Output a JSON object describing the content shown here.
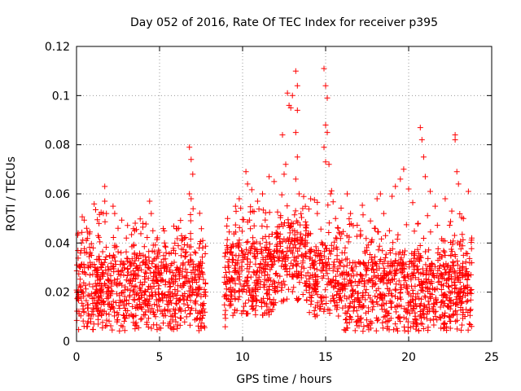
{
  "chart_data": {
    "type": "scatter",
    "title": "Day 052 of 2016, Rate Of TEC Index for receiver p395",
    "xlabel": "GPS time / hours",
    "ylabel": "ROTI / TECUs",
    "xlim": [
      0,
      25
    ],
    "ylim": [
      0,
      0.12
    ],
    "xticks": [
      0,
      5,
      10,
      15,
      20,
      25
    ],
    "yticks": [
      0,
      0.02,
      0.04,
      0.06,
      0.08,
      0.1,
      0.12
    ],
    "xtick_labels": [
      "0",
      "5",
      "10",
      "15",
      "20",
      "25"
    ],
    "ytick_labels": [
      "0",
      "0.02",
      "0.04",
      "0.06",
      "0.08",
      "0.1",
      "0.12"
    ],
    "grid": true,
    "marker": "+",
    "color": "#ff0000",
    "data_gap_hours": [
      7.8,
      8.9
    ],
    "series": [
      {
        "name": "ROTI",
        "points": [
          [
            0.1,
            0.044
          ],
          [
            0.3,
            0.04
          ],
          [
            0.5,
            0.036
          ],
          [
            1.0,
            0.038
          ],
          [
            1.3,
            0.043
          ],
          [
            1.7,
            0.063
          ],
          [
            1.7,
            0.057
          ],
          [
            1.8,
            0.052
          ],
          [
            2.2,
            0.055
          ],
          [
            2.3,
            0.052
          ],
          [
            3.0,
            0.042
          ],
          [
            3.5,
            0.045
          ],
          [
            4.0,
            0.048
          ],
          [
            4.4,
            0.057
          ],
          [
            4.5,
            0.052
          ],
          [
            4.6,
            0.045
          ],
          [
            5.3,
            0.04
          ],
          [
            5.7,
            0.036
          ],
          [
            6.5,
            0.042
          ],
          [
            6.8,
            0.079
          ],
          [
            6.9,
            0.074
          ],
          [
            7.0,
            0.068
          ],
          [
            6.8,
            0.06
          ],
          [
            6.9,
            0.058
          ],
          [
            7.6,
            0.041
          ],
          [
            9.1,
            0.05
          ],
          [
            9.8,
            0.058
          ],
          [
            10.2,
            0.069
          ],
          [
            10.3,
            0.064
          ],
          [
            10.9,
            0.057
          ],
          [
            11.2,
            0.06
          ],
          [
            11.6,
            0.067
          ],
          [
            11.9,
            0.065
          ],
          [
            12.4,
            0.084
          ],
          [
            12.7,
            0.101
          ],
          [
            12.8,
            0.096
          ],
          [
            12.9,
            0.095
          ],
          [
            13.0,
            0.1
          ],
          [
            13.2,
            0.11
          ],
          [
            13.3,
            0.104
          ],
          [
            13.3,
            0.094
          ],
          [
            13.2,
            0.085
          ],
          [
            13.3,
            0.075
          ],
          [
            13.2,
            0.066
          ],
          [
            13.4,
            0.06
          ],
          [
            12.6,
            0.072
          ],
          [
            12.5,
            0.068
          ],
          [
            14.1,
            0.058
          ],
          [
            14.5,
            0.052
          ],
          [
            14.9,
            0.111
          ],
          [
            15.0,
            0.104
          ],
          [
            15.1,
            0.099
          ],
          [
            15.0,
            0.088
          ],
          [
            15.1,
            0.085
          ],
          [
            14.9,
            0.079
          ],
          [
            15.0,
            0.073
          ],
          [
            15.2,
            0.072
          ],
          [
            15.3,
            0.06
          ],
          [
            15.6,
            0.05
          ],
          [
            16.3,
            0.06
          ],
          [
            16.5,
            0.052
          ],
          [
            17.1,
            0.045
          ],
          [
            17.7,
            0.049
          ],
          [
            18.1,
            0.058
          ],
          [
            18.3,
            0.06
          ],
          [
            18.5,
            0.052
          ],
          [
            19.0,
            0.059
          ],
          [
            19.2,
            0.063
          ],
          [
            19.5,
            0.066
          ],
          [
            19.7,
            0.07
          ],
          [
            20.0,
            0.062
          ],
          [
            20.7,
            0.087
          ],
          [
            20.8,
            0.082
          ],
          [
            20.9,
            0.075
          ],
          [
            21.0,
            0.067
          ],
          [
            21.3,
            0.061
          ],
          [
            21.6,
            0.055
          ],
          [
            22.2,
            0.058
          ],
          [
            22.6,
            0.053
          ],
          [
            22.8,
            0.084
          ],
          [
            22.8,
            0.082
          ],
          [
            22.9,
            0.069
          ],
          [
            23.0,
            0.064
          ],
          [
            23.3,
            0.05
          ],
          [
            23.6,
            0.061
          ],
          [
            23.8,
            0.042
          ]
        ]
      }
    ]
  }
}
